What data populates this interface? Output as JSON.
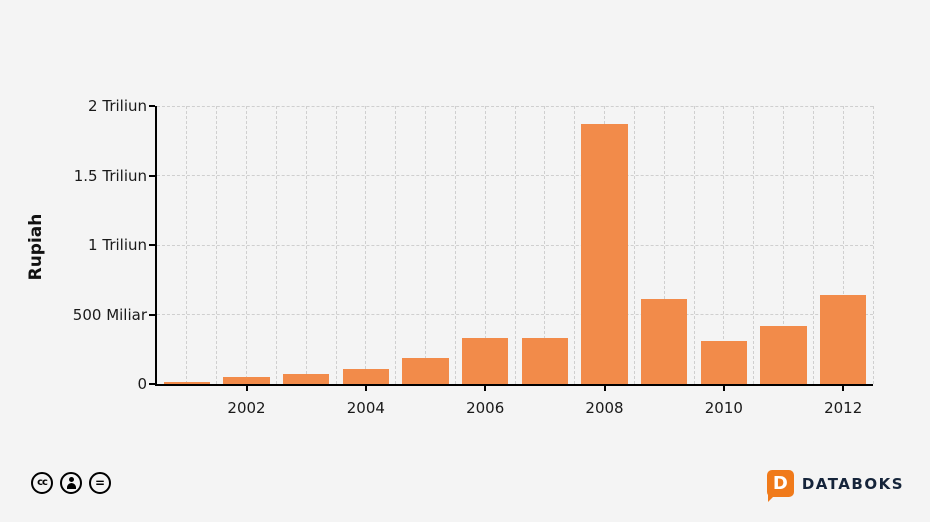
{
  "chart_data": {
    "type": "bar",
    "title": "",
    "xlabel": "",
    "ylabel": "Rupiah",
    "categories": [
      "2001",
      "2002",
      "2003",
      "2004",
      "2005",
      "2006",
      "2007",
      "2008",
      "2009",
      "2010",
      "2011",
      "2012"
    ],
    "values": [
      15,
      50,
      75,
      110,
      185,
      330,
      330,
      1870,
      610,
      310,
      420,
      640
    ],
    "unit": "Miliar Rupiah",
    "ylim": [
      0,
      2000
    ],
    "y_ticks": [
      {
        "value": 0,
        "label": "0"
      },
      {
        "value": 500,
        "label": "500 Miliar"
      },
      {
        "value": 1000,
        "label": "1 Triliun"
      },
      {
        "value": 1500,
        "label": "1.5 Triliun"
      },
      {
        "value": 2000,
        "label": "2 Triliun"
      }
    ],
    "x_tick_labels": [
      "2002",
      "2004",
      "2006",
      "2008",
      "2010",
      "2012"
    ],
    "grid": true,
    "legend": false,
    "bar_color": "#F28B4A"
  },
  "footer": {
    "license_icons": [
      "cc-icon",
      "by-icon",
      "nd-icon"
    ],
    "cc_label": "cc",
    "nd_symbol": "=",
    "logo_letter": "D",
    "brand": "DATABOKS"
  },
  "colors": {
    "background": "#f4f4f4",
    "bar": "#F28B4A",
    "grid": "#cfcfcf",
    "axis": "#000000",
    "brand_orange": "#F07A1A",
    "brand_text": "#15243a"
  }
}
